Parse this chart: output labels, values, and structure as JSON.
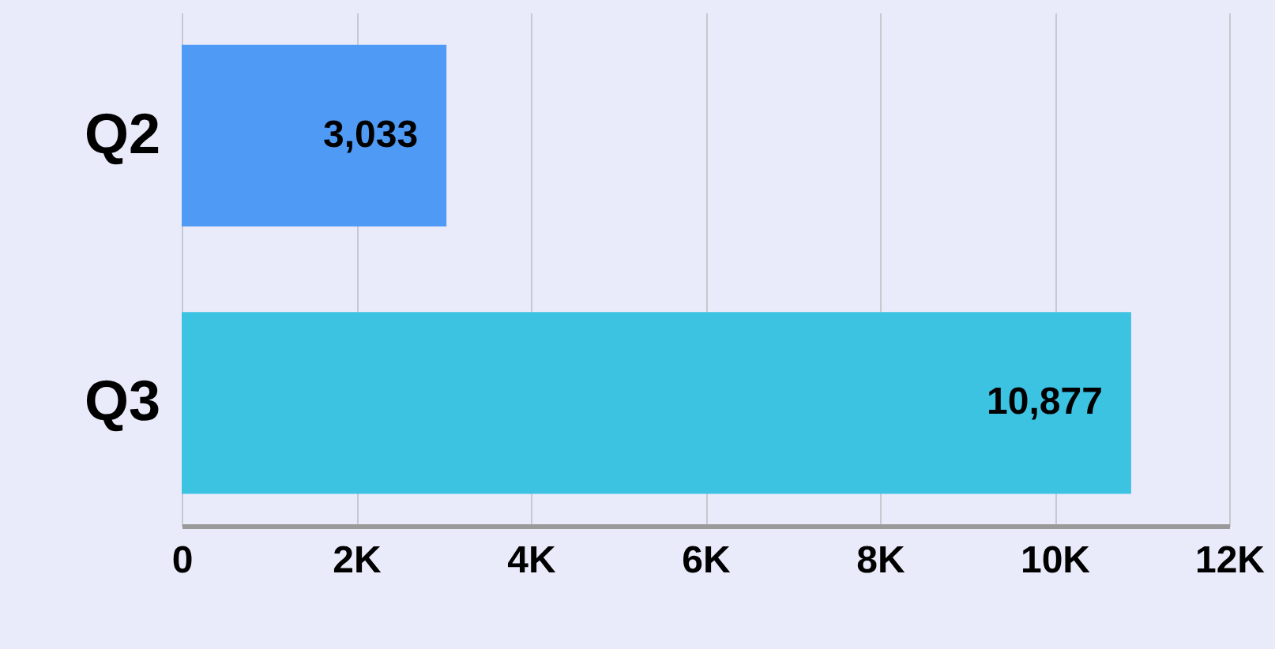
{
  "chart_data": {
    "type": "bar",
    "orientation": "horizontal",
    "categories": [
      "Q2",
      "Q3"
    ],
    "values": [
      3033,
      10877
    ],
    "colors": [
      "#4f9af5",
      "#3cc3e2"
    ],
    "value_labels": [
      "3,033",
      "10,877"
    ],
    "xlim": [
      0,
      12000
    ],
    "xticks": [
      0,
      {
        "value": 2000,
        "label": "2K"
      },
      {
        "value": 4000,
        "label": "4K"
      },
      {
        "value": 6000,
        "label": "6K"
      },
      {
        "value": 8000,
        "label": "8K"
      },
      {
        "value": 10000,
        "label": "10K"
      },
      {
        "value": 12000,
        "label": "12K"
      }
    ],
    "grid": "x"
  }
}
